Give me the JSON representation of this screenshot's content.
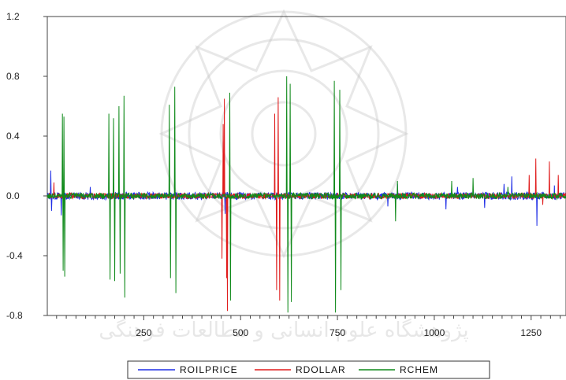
{
  "watermark_text": "پژوهشگاه علوم انسانی و مطالعات فرهنگی",
  "chart_data": {
    "type": "line",
    "title": "",
    "xlabel": "",
    "ylabel": "",
    "xlim": [
      1,
      1340
    ],
    "ylim": [
      -0.8,
      1.2
    ],
    "grid": false,
    "legend_position": "bottom-center",
    "x_ticks": [
      250,
      500,
      750,
      1000,
      1250
    ],
    "x_tick_labels": [
      "250",
      "500",
      "750",
      "1000",
      "1250"
    ],
    "y_ticks": [
      -0.8,
      -0.4,
      0.0,
      0.4,
      0.8,
      1.2
    ],
    "y_tick_labels": [
      "-0.8",
      "-0.4",
      "0.0",
      "0.4",
      "0.8",
      "1.2"
    ],
    "series": [
      {
        "name": "ROILPRICE",
        "color": "#1f2ee6",
        "noise": 0.025,
        "spikes": [
          {
            "x": 10,
            "y": 0.17
          },
          {
            "x": 12,
            "y": -0.1
          },
          {
            "x": 37,
            "y": -0.13
          },
          {
            "x": 112,
            "y": 0.06
          },
          {
            "x": 460,
            "y": -0.12
          },
          {
            "x": 880,
            "y": -0.07
          },
          {
            "x": 905,
            "y": 0.08
          },
          {
            "x": 1030,
            "y": -0.09
          },
          {
            "x": 1060,
            "y": 0.06
          },
          {
            "x": 1130,
            "y": -0.08
          },
          {
            "x": 1180,
            "y": 0.08
          },
          {
            "x": 1200,
            "y": 0.13
          },
          {
            "x": 1265,
            "y": -0.2
          },
          {
            "x": 1310,
            "y": 0.07
          }
        ]
      },
      {
        "name": "RDOLLAR",
        "color": "#e01b1b",
        "noise": 0.018,
        "spikes": [
          {
            "x": 18,
            "y": 0.09
          },
          {
            "x": 452,
            "y": -0.42
          },
          {
            "x": 455,
            "y": 0.48
          },
          {
            "x": 458,
            "y": 0.65
          },
          {
            "x": 464,
            "y": -0.55
          },
          {
            "x": 466,
            "y": -0.77
          },
          {
            "x": 588,
            "y": 0.55
          },
          {
            "x": 593,
            "y": -0.63
          },
          {
            "x": 597,
            "y": 0.66
          },
          {
            "x": 601,
            "y": -0.7
          },
          {
            "x": 1245,
            "y": 0.14
          },
          {
            "x": 1262,
            "y": 0.25
          },
          {
            "x": 1280,
            "y": -0.06
          },
          {
            "x": 1297,
            "y": 0.23
          },
          {
            "x": 1320,
            "y": 0.14
          }
        ]
      },
      {
        "name": "RCHEM",
        "color": "#0f8a1a",
        "noise": 0.02,
        "spikes": [
          {
            "x": 40,
            "y": 0.55
          },
          {
            "x": 42,
            "y": -0.5
          },
          {
            "x": 44,
            "y": 0.53
          },
          {
            "x": 46,
            "y": -0.54
          },
          {
            "x": 160,
            "y": 0.55
          },
          {
            "x": 163,
            "y": -0.56
          },
          {
            "x": 172,
            "y": 0.52
          },
          {
            "x": 175,
            "y": -0.57
          },
          {
            "x": 186,
            "y": 0.6
          },
          {
            "x": 189,
            "y": -0.52
          },
          {
            "x": 199,
            "y": 0.67
          },
          {
            "x": 201,
            "y": -0.68
          },
          {
            "x": 316,
            "y": 0.61
          },
          {
            "x": 319,
            "y": -0.55
          },
          {
            "x": 330,
            "y": 0.73
          },
          {
            "x": 333,
            "y": -0.65
          },
          {
            "x": 472,
            "y": 0.69
          },
          {
            "x": 474,
            "y": -0.7
          },
          {
            "x": 619,
            "y": 0.8
          },
          {
            "x": 622,
            "y": -0.78
          },
          {
            "x": 628,
            "y": 0.75
          },
          {
            "x": 631,
            "y": -0.71
          },
          {
            "x": 742,
            "y": 0.77
          },
          {
            "x": 745,
            "y": -0.78
          },
          {
            "x": 756,
            "y": 0.71
          },
          {
            "x": 759,
            "y": -0.63
          },
          {
            "x": 900,
            "y": -0.17
          },
          {
            "x": 905,
            "y": 0.1
          },
          {
            "x": 1045,
            "y": 0.1
          },
          {
            "x": 1100,
            "y": 0.12
          },
          {
            "x": 1190,
            "y": 0.06
          }
        ]
      }
    ]
  }
}
